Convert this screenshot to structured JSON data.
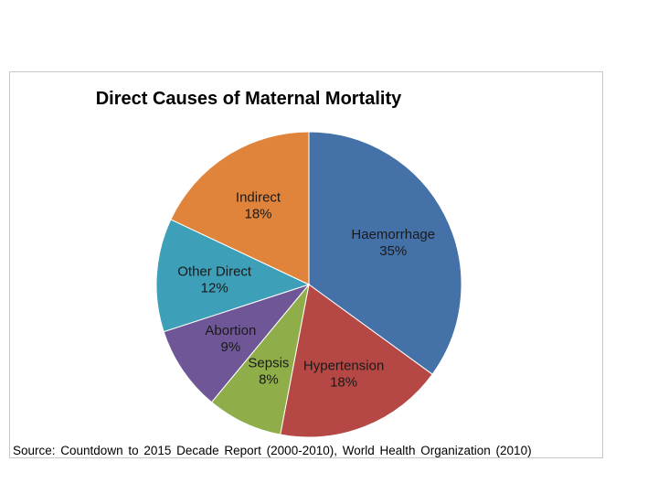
{
  "chart_data": {
    "type": "pie",
    "title": "Direct Causes of Maternal Mortality",
    "slices": [
      {
        "label": "Haemorrhage",
        "value": 35,
        "value_label": "35%",
        "color": "#4472a8"
      },
      {
        "label": "Hypertension",
        "value": 18,
        "value_label": "18%",
        "color": "#b54744"
      },
      {
        "label": "Sepsis",
        "value": 8,
        "value_label": "8%",
        "color": "#8fae4a"
      },
      {
        "label": "Abortion",
        "value": 9,
        "value_label": "9%",
        "color": "#6e5697"
      },
      {
        "label": "Other Direct",
        "value": 12,
        "value_label": "12%",
        "color": "#3d9fb8"
      },
      {
        "label": "Indirect",
        "value": 18,
        "value_label": "18%",
        "color": "#e0843c"
      }
    ],
    "legend": "none",
    "grid": false,
    "source": "Source: Countdown to 2015 Decade Report (2000-2010), World Health Organization (2010)"
  }
}
